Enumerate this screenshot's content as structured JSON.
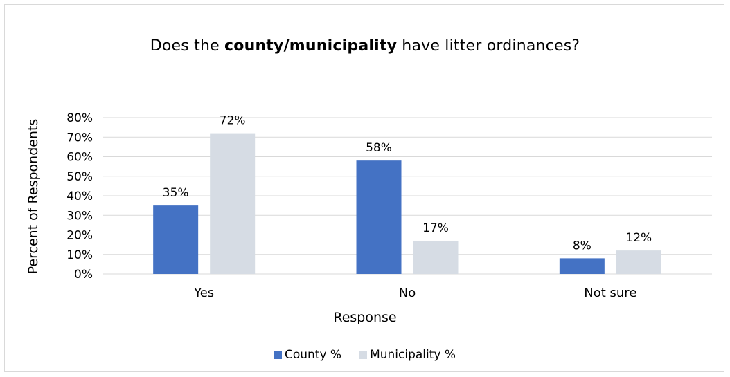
{
  "chart_data": {
    "type": "bar",
    "title_prefix": "Does the ",
    "title_bold": "county/municipality",
    "title_suffix": " have litter ordinances?",
    "xlabel": "Response",
    "ylabel": "Percent of Respondents",
    "categories": [
      "Yes",
      "No",
      "Not sure"
    ],
    "series": [
      {
        "name": "County %",
        "values": [
          35,
          58,
          8
        ],
        "labels": [
          "35%",
          "58%",
          "8%"
        ],
        "color": "#4472c4"
      },
      {
        "name": "Municipality %",
        "values": [
          72,
          17,
          12
        ],
        "labels": [
          "72%",
          "17%",
          "12%"
        ],
        "color": "#d6dce4"
      }
    ],
    "y_ticks": [
      "0%",
      "10%",
      "20%",
      "30%",
      "40%",
      "50%",
      "60%",
      "70%",
      "80%"
    ],
    "ylim": [
      0,
      80
    ],
    "grid": true,
    "gridline_color": "#d9d9d9",
    "legend_position": "bottom"
  }
}
